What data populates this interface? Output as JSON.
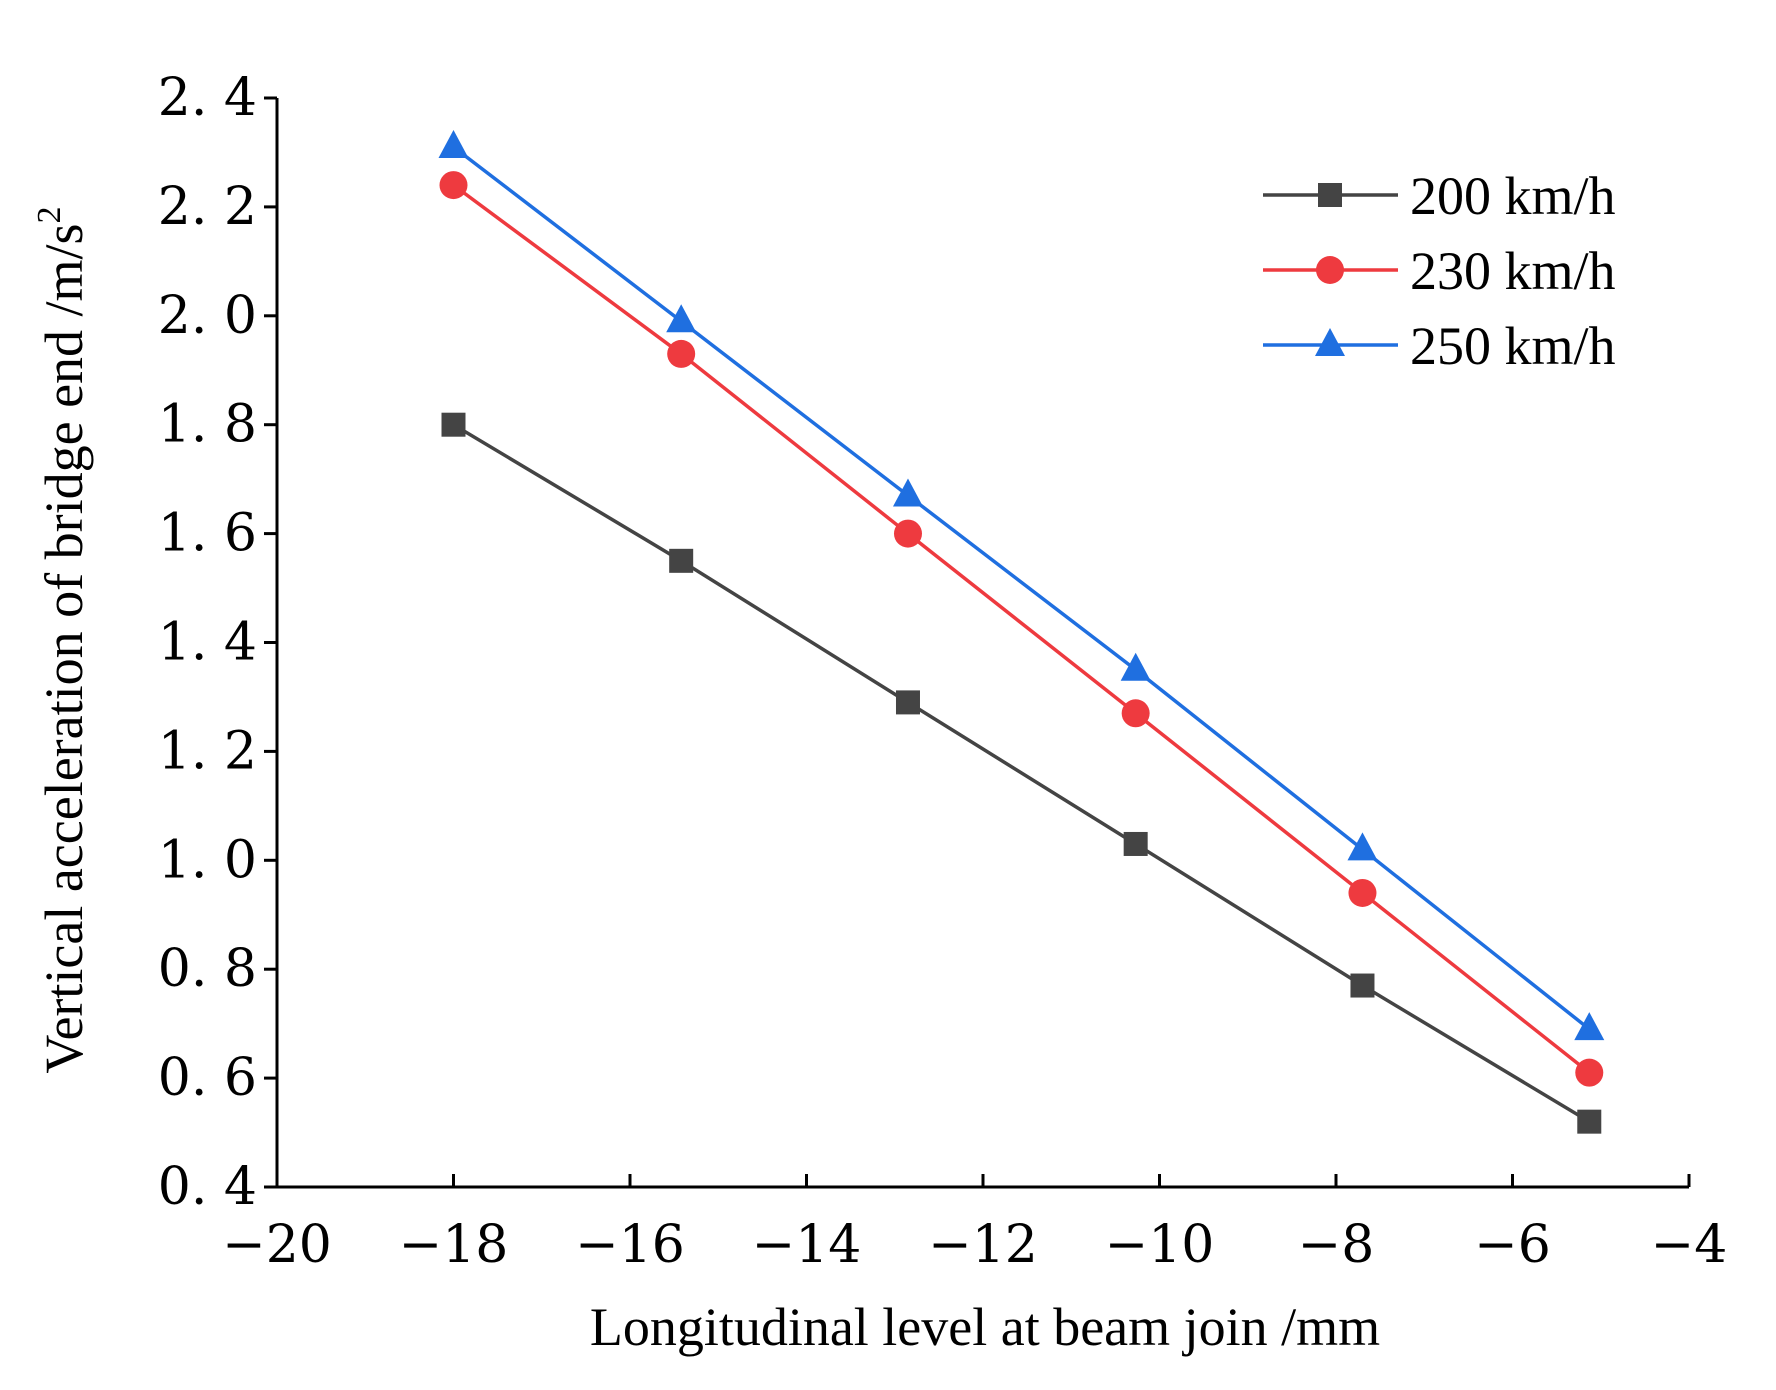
{
  "chart_data": {
    "type": "line",
    "title": "",
    "xlabel": "Longitudinal level at beam join /mm",
    "ylabel": "Vertical acceleration of bridge end /m/s",
    "ylabel_superscript": "2",
    "xlim": [
      -20,
      -4
    ],
    "ylim": [
      0.4,
      2.4
    ],
    "x_ticks": [
      -20,
      -18,
      -16,
      -14,
      -12,
      -10,
      -8,
      -6,
      -4
    ],
    "x_tick_labels": [
      "−20",
      "−18",
      "−16",
      "−14",
      "−12",
      "−10",
      "−8",
      "−6",
      "−4"
    ],
    "y_ticks": [
      0.4,
      0.6,
      0.8,
      1.0,
      1.2,
      1.4,
      1.6,
      1.8,
      2.0,
      2.2,
      2.4
    ],
    "y_tick_labels": [
      "0. 4",
      "0. 6",
      "0. 8",
      "1. 0",
      "1. 2",
      "1. 4",
      "1. 6",
      "1. 8",
      "2. 0",
      "2. 2",
      "2. 4"
    ],
    "grid": false,
    "legend_position": "top-right",
    "series": [
      {
        "name": "200 km/h",
        "color": "#444444",
        "marker": "square",
        "x": [
          -18,
          -15.42,
          -12.85,
          -10.27,
          -7.7,
          -5.13
        ],
        "y": [
          1.8,
          1.55,
          1.29,
          1.03,
          0.77,
          0.52
        ]
      },
      {
        "name": "230 km/h",
        "color": "#ee3a3f",
        "marker": "circle",
        "x": [
          -18,
          -15.42,
          -12.85,
          -10.27,
          -7.7,
          -5.13
        ],
        "y": [
          2.24,
          1.93,
          1.6,
          1.27,
          0.94,
          0.61
        ]
      },
      {
        "name": "250 km/h",
        "color": "#1f6fe0",
        "marker": "triangle",
        "x": [
          -18,
          -15.42,
          -12.85,
          -10.27,
          -7.7,
          -5.13
        ],
        "y": [
          2.31,
          1.99,
          1.67,
          1.35,
          1.02,
          0.69
        ]
      }
    ]
  }
}
